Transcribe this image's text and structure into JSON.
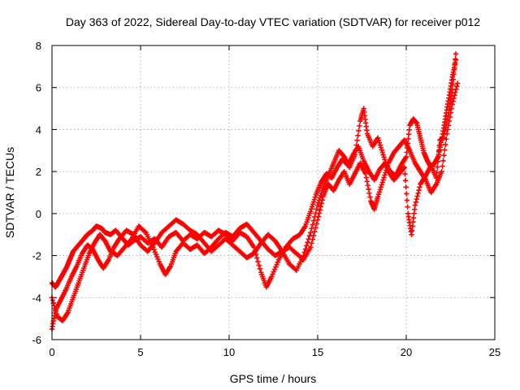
{
  "chart_data": {
    "type": "scatter",
    "title": "Day 363 of 2022, Sidereal Day-to-day VTEC variation (SDTVAR) for receiver p012",
    "xlabel": "GPS time / hours",
    "ylabel": "SDTVAR / TECUs",
    "xlim": [
      0,
      25
    ],
    "ylim": [
      -6,
      8
    ],
    "x_ticks": [
      0,
      5,
      10,
      15,
      20,
      25
    ],
    "y_ticks": [
      -6,
      -4,
      -2,
      0,
      2,
      4,
      6,
      8
    ],
    "x_tick_labels": [
      "0",
      "5",
      "10",
      "15",
      "20",
      "25"
    ],
    "y_tick_labels": [
      "-6",
      "-4",
      "-2",
      "0",
      "2",
      "4",
      "6",
      "8"
    ],
    "grid": true,
    "marker": "plus",
    "color": "#ff0000",
    "series": [
      {
        "name": "track-1",
        "points": [
          [
            0.0,
            -3.3
          ],
          [
            0.2,
            -3.5
          ],
          [
            0.4,
            -3.2
          ],
          [
            0.6,
            -2.9
          ],
          [
            0.8,
            -2.6
          ],
          [
            1.0,
            -2.2
          ],
          [
            1.2,
            -1.8
          ],
          [
            1.5,
            -1.5
          ],
          [
            1.8,
            -1.2
          ],
          [
            2.0,
            -1.0
          ],
          [
            2.3,
            -0.8
          ],
          [
            2.5,
            -0.6
          ],
          [
            2.8,
            -0.7
          ],
          [
            3.0,
            -0.9
          ],
          [
            3.3,
            -1.0
          ],
          [
            3.6,
            -0.8
          ],
          [
            4.0,
            -1.2
          ],
          [
            4.3,
            -1.5
          ],
          [
            4.6,
            -1.3
          ],
          [
            5.0,
            -1.1
          ],
          [
            5.4,
            -1.4
          ],
          [
            5.8,
            -1.2
          ],
          [
            6.2,
            -1.6
          ],
          [
            6.6,
            -1.1
          ],
          [
            7.0,
            -0.9
          ],
          [
            7.4,
            -1.3
          ],
          [
            7.8,
            -1.0
          ],
          [
            8.2,
            -1.2
          ],
          [
            8.6,
            -0.9
          ],
          [
            9.0,
            -1.1
          ],
          [
            9.4,
            -0.8
          ],
          [
            9.8,
            -1.0
          ],
          [
            10.2,
            -1.3
          ],
          [
            10.6,
            -0.9
          ],
          [
            11.0,
            -1.1
          ],
          [
            11.4,
            -1.6
          ],
          [
            11.8,
            -2.8
          ],
          [
            12.1,
            -3.5
          ],
          [
            12.4,
            -3.0
          ],
          [
            12.8,
            -2.2
          ],
          [
            13.2,
            -1.6
          ],
          [
            13.6,
            -1.2
          ],
          [
            14.0,
            -1.0
          ],
          [
            14.3,
            -0.6
          ],
          [
            14.6,
            0.1
          ],
          [
            14.9,
            0.9
          ],
          [
            15.2,
            1.5
          ],
          [
            15.5,
            1.9
          ],
          [
            15.8,
            1.7
          ],
          [
            16.1,
            2.2
          ],
          [
            16.4,
            2.6
          ],
          [
            16.7,
            2.3
          ],
          [
            17.0,
            2.8
          ],
          [
            17.3,
            3.2
          ],
          [
            17.6,
            2.5
          ],
          [
            17.9,
            2.0
          ],
          [
            18.2,
            1.6
          ],
          [
            18.5,
            2.1
          ],
          [
            18.8,
            2.4
          ],
          [
            19.1,
            2.0
          ],
          [
            19.4,
            1.8
          ],
          [
            19.7,
            2.3
          ],
          [
            20.0,
            2.7
          ],
          [
            20.2,
            4.2
          ],
          [
            20.4,
            4.5
          ],
          [
            20.6,
            4.3
          ],
          [
            20.8,
            3.6
          ],
          [
            21.0,
            2.9
          ],
          [
            21.2,
            2.5
          ],
          [
            21.4,
            2.2
          ],
          [
            21.6,
            2.4
          ],
          [
            21.8,
            2.7
          ],
          [
            22.0,
            3.5
          ],
          [
            22.2,
            4.5
          ],
          [
            22.4,
            5.5
          ],
          [
            22.6,
            6.5
          ],
          [
            22.8,
            7.3
          ]
        ]
      },
      {
        "name": "track-2",
        "points": [
          [
            0.0,
            -4.0
          ],
          [
            0.3,
            -4.9
          ],
          [
            0.6,
            -5.1
          ],
          [
            0.9,
            -4.7
          ],
          [
            1.2,
            -4.0
          ],
          [
            1.5,
            -3.3
          ],
          [
            1.8,
            -2.6
          ],
          [
            2.1,
            -1.9
          ],
          [
            2.4,
            -1.4
          ],
          [
            2.7,
            -1.0
          ],
          [
            3.0,
            -1.3
          ],
          [
            3.3,
            -1.8
          ],
          [
            3.7,
            -2.0
          ],
          [
            4.1,
            -1.6
          ],
          [
            4.5,
            -1.2
          ],
          [
            4.9,
            -0.6
          ],
          [
            5.3,
            -0.9
          ],
          [
            5.7,
            -1.6
          ],
          [
            6.1,
            -2.4
          ],
          [
            6.4,
            -2.9
          ],
          [
            6.7,
            -2.5
          ],
          [
            7.0,
            -1.8
          ],
          [
            7.4,
            -1.4
          ],
          [
            7.8,
            -1.7
          ],
          [
            8.2,
            -1.5
          ],
          [
            8.6,
            -1.9
          ],
          [
            9.0,
            -1.6
          ],
          [
            9.4,
            -1.2
          ],
          [
            9.8,
            -0.9
          ],
          [
            10.2,
            -1.1
          ],
          [
            10.6,
            -0.7
          ],
          [
            11.0,
            -0.5
          ],
          [
            11.4,
            -0.9
          ],
          [
            11.8,
            -1.3
          ],
          [
            12.2,
            -1.7
          ],
          [
            12.6,
            -2.0
          ],
          [
            13.0,
            -1.8
          ],
          [
            13.4,
            -1.6
          ],
          [
            13.8,
            -1.9
          ],
          [
            14.2,
            -2.2
          ],
          [
            14.6,
            -1.6
          ],
          [
            15.0,
            -0.3
          ],
          [
            15.3,
            0.8
          ],
          [
            15.6,
            1.4
          ],
          [
            15.9,
            1.1
          ],
          [
            16.2,
            1.6
          ],
          [
            16.5,
            2.0
          ],
          [
            16.8,
            1.4
          ],
          [
            17.1,
            1.9
          ],
          [
            17.4,
            2.4
          ],
          [
            17.7,
            1.9
          ],
          [
            18.0,
            0.6
          ],
          [
            18.2,
            0.2
          ],
          [
            18.4,
            0.8
          ],
          [
            18.7,
            1.6
          ],
          [
            19.0,
            2.4
          ],
          [
            19.3,
            2.9
          ],
          [
            19.6,
            3.2
          ],
          [
            19.9,
            3.5
          ],
          [
            20.2,
            3.0
          ],
          [
            20.5,
            2.4
          ],
          [
            20.8,
            2.0
          ],
          [
            21.1,
            1.6
          ],
          [
            21.4,
            1.0
          ],
          [
            21.7,
            1.4
          ],
          [
            22.0,
            2.0
          ],
          [
            22.3,
            3.8
          ],
          [
            22.6,
            5.2
          ],
          [
            22.9,
            6.2
          ]
        ]
      },
      {
        "name": "track-3",
        "points": [
          [
            0.0,
            -5.5
          ],
          [
            0.2,
            -4.6
          ],
          [
            0.5,
            -4.1
          ],
          [
            0.8,
            -3.6
          ],
          [
            1.1,
            -3.0
          ],
          [
            1.4,
            -2.5
          ],
          [
            1.7,
            -1.9
          ],
          [
            2.0,
            -1.5
          ],
          [
            2.3,
            -1.7
          ],
          [
            2.6,
            -2.2
          ],
          [
            2.9,
            -2.6
          ],
          [
            3.2,
            -2.2
          ],
          [
            3.5,
            -1.6
          ],
          [
            3.8,
            -1.2
          ],
          [
            4.2,
            -0.8
          ],
          [
            4.6,
            -1.0
          ],
          [
            5.0,
            -1.5
          ],
          [
            5.4,
            -1.8
          ],
          [
            5.8,
            -1.4
          ],
          [
            6.2,
            -0.9
          ],
          [
            6.6,
            -0.6
          ],
          [
            7.0,
            -0.3
          ],
          [
            7.4,
            -0.5
          ],
          [
            7.8,
            -0.8
          ],
          [
            8.2,
            -1.0
          ],
          [
            8.6,
            -1.4
          ],
          [
            9.0,
            -1.8
          ],
          [
            9.4,
            -1.5
          ],
          [
            9.8,
            -1.2
          ],
          [
            10.2,
            -1.5
          ],
          [
            10.6,
            -1.8
          ],
          [
            11.0,
            -2.1
          ],
          [
            11.4,
            -1.9
          ],
          [
            11.8,
            -1.4
          ],
          [
            12.2,
            -1.0
          ],
          [
            12.6,
            -1.3
          ],
          [
            13.0,
            -1.8
          ],
          [
            13.4,
            -2.4
          ],
          [
            13.8,
            -2.7
          ],
          [
            14.2,
            -2.0
          ],
          [
            14.6,
            -0.9
          ],
          [
            15.0,
            0.4
          ],
          [
            15.3,
            1.2
          ],
          [
            15.6,
            1.8
          ],
          [
            15.9,
            2.4
          ],
          [
            16.2,
            3.0
          ],
          [
            16.5,
            2.7
          ],
          [
            16.8,
            2.2
          ],
          [
            17.1,
            2.8
          ],
          [
            17.4,
            4.4
          ],
          [
            17.6,
            5.0
          ],
          [
            17.8,
            3.8
          ],
          [
            18.1,
            3.2
          ],
          [
            18.4,
            3.6
          ],
          [
            18.7,
            2.8
          ],
          [
            19.0,
            2.0
          ],
          [
            19.3,
            1.6
          ],
          [
            19.6,
            1.9
          ],
          [
            19.9,
            2.2
          ],
          [
            20.1,
            0.0
          ],
          [
            20.3,
            -1.0
          ],
          [
            20.5,
            0.4
          ],
          [
            20.8,
            1.4
          ],
          [
            21.1,
            1.8
          ],
          [
            21.4,
            2.3
          ],
          [
            21.7,
            1.7
          ],
          [
            21.9,
            3.5
          ],
          [
            22.1,
            3.6
          ],
          [
            22.4,
            4.8
          ],
          [
            22.6,
            5.9
          ],
          [
            22.8,
            7.6
          ]
        ]
      }
    ]
  }
}
